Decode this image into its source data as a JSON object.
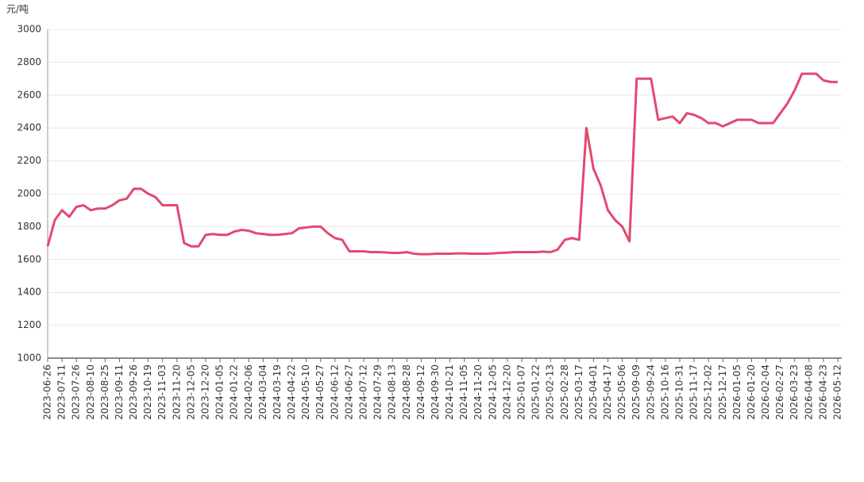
{
  "chart_data": {
    "type": "line",
    "y_label": "元/吨",
    "categories": [
      "2023-06-26",
      null,
      "2023-07-11",
      null,
      "2023-07-26",
      null,
      "2023-08-10",
      null,
      "2023-08-25",
      null,
      "2023-09-11",
      null,
      "2023-09-26",
      null,
      "2023-10-19",
      null,
      "2023-11-03",
      null,
      "2023-11-20",
      null,
      "2023-12-05",
      null,
      "2023-12-20",
      null,
      "2024-01-05",
      null,
      "2024-01-22",
      null,
      "2024-02-06",
      null,
      "2024-03-04",
      null,
      "2024-03-19",
      null,
      "2024-04-22",
      null,
      "2024-05-10",
      null,
      "2024-05-27",
      null,
      "2024-06-12",
      null,
      "2024-06-27",
      null,
      "2024-07-12",
      null,
      "2024-07-29",
      null,
      "2024-08-13",
      null,
      "2024-08-28",
      null,
      "2024-09-12",
      null,
      "2024-09-30",
      null,
      "2024-10-21",
      null,
      "2024-11-05",
      null,
      "2024-11-20",
      null,
      "2024-12-05",
      null,
      "2024-12-20",
      null,
      "2025-01-07",
      null,
      "2025-01-22",
      null,
      "2025-02-13",
      null,
      "2025-02-28",
      null,
      "2025-03-17",
      null,
      "2025-04-01",
      null,
      "2025-04-17",
      null,
      "2025-05-06",
      null,
      "2025-09-09",
      null,
      "2025-09-24",
      null,
      "2025-10-16",
      null,
      "2025-10-31",
      null,
      "2025-11-17",
      null,
      "2025-12-02",
      null,
      "2025-12-17",
      null,
      "2026-01-05",
      null,
      "2026-01-20",
      null,
      "2026-02-04",
      null,
      "2026-02-27",
      null,
      "2026-03-23",
      null,
      "2026-04-08",
      null,
      "2026-04-23",
      null,
      "2026-05-12"
    ],
    "values": [
      1680,
      1840,
      1900,
      1860,
      1920,
      1930,
      1900,
      1910,
      1910,
      1930,
      1960,
      1970,
      2030,
      2030,
      2000,
      1980,
      1930,
      1930,
      1930,
      1700,
      1680,
      1680,
      1750,
      1755,
      1750,
      1750,
      1770,
      1780,
      1775,
      1760,
      1755,
      1750,
      1750,
      1755,
      1760,
      1790,
      1795,
      1800,
      1800,
      1760,
      1730,
      1720,
      1650,
      1650,
      1650,
      1645,
      1645,
      1643,
      1640,
      1640,
      1645,
      1635,
      1632,
      1632,
      1635,
      1635,
      1635,
      1637,
      1637,
      1635,
      1635,
      1635,
      1637,
      1640,
      1642,
      1645,
      1645,
      1645,
      1645,
      1648,
      1645,
      1660,
      1720,
      1730,
      1720,
      2400,
      2150,
      2050,
      1900,
      1840,
      1800,
      1710,
      2700,
      2700,
      2700,
      2450,
      2460,
      2470,
      2430,
      2490,
      2480,
      2460,
      2430,
      2430,
      2410,
      2430,
      2450,
      2450,
      2450,
      2430,
      2430,
      2430,
      2490,
      2550,
      2630,
      2730,
      2730,
      2730,
      2690,
      2680,
      2680
    ],
    "color": "#e2496f",
    "ylim": [
      1000,
      3000
    ],
    "yticks": [
      1000,
      1200,
      1400,
      1600,
      1800,
      2000,
      2200,
      2400,
      2600,
      2800,
      3000
    ],
    "grid": true
  }
}
